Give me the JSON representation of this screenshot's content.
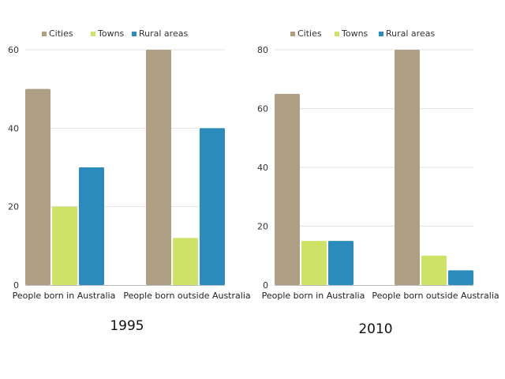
{
  "chart_data": [
    {
      "type": "bar",
      "title": "1995",
      "categories": [
        "People born in Australia",
        "People born outside Australia"
      ],
      "series": [
        {
          "name": "Cities",
          "color": "#ae9f84",
          "values": [
            50,
            60
          ]
        },
        {
          "name": "Towns",
          "color": "#cde266",
          "values": [
            20,
            12
          ]
        },
        {
          "name": "Rural areas",
          "color": "#2b8bbd",
          "values": [
            30,
            40
          ]
        }
      ],
      "ylim": [
        0,
        60
      ],
      "yticks": [
        "0",
        "20",
        "40",
        "60"
      ],
      "grid": true,
      "legend": "top"
    },
    {
      "type": "bar",
      "title": "2010",
      "categories": [
        "People born in Australia",
        "People born outside Australia"
      ],
      "series": [
        {
          "name": "Cities",
          "color": "#ae9f84",
          "values": [
            65,
            80
          ]
        },
        {
          "name": "Towns",
          "color": "#cde266",
          "values": [
            15,
            10
          ]
        },
        {
          "name": "Rural areas",
          "color": "#2b8bbd",
          "values": [
            15,
            5
          ]
        }
      ],
      "ylim": [
        0,
        80
      ],
      "yticks": [
        "0",
        "20",
        "40",
        "60",
        "80"
      ],
      "grid": true,
      "legend": "top"
    }
  ]
}
